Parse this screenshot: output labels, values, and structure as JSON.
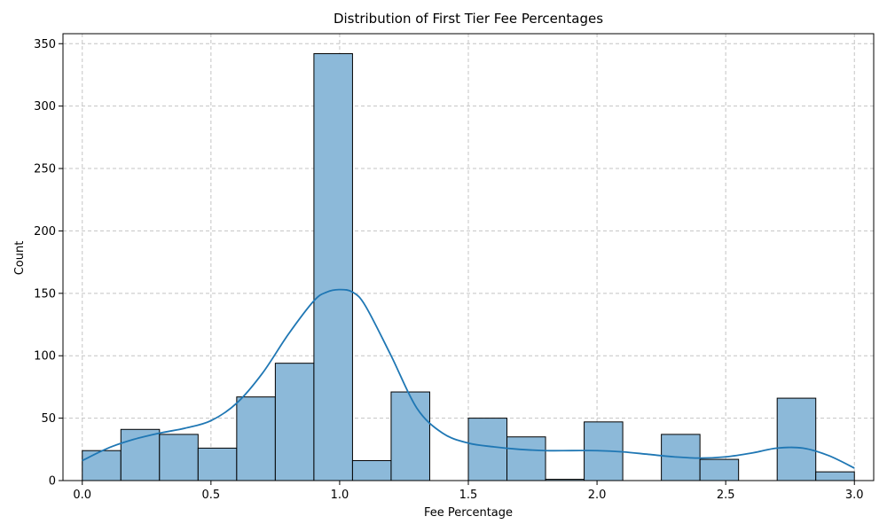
{
  "chart_data": {
    "type": "bar",
    "title": "Distribution of First Tier Fee Percentages",
    "xlabel": "Fee Percentage",
    "ylabel": "Count",
    "xlim": [
      -0.075,
      3.075
    ],
    "ylim": [
      0,
      358
    ],
    "xticks": [
      0.0,
      0.5,
      1.0,
      1.5,
      2.0,
      2.5,
      3.0
    ],
    "xtick_labels": [
      "0.0",
      "0.5",
      "1.0",
      "1.5",
      "2.0",
      "2.5",
      "3.0"
    ],
    "yticks": [
      0,
      50,
      100,
      150,
      200,
      250,
      300,
      350
    ],
    "ytick_labels": [
      "0",
      "50",
      "100",
      "150",
      "200",
      "250",
      "300",
      "350"
    ],
    "grid": true,
    "bin_edges": [
      0.0,
      0.15,
      0.3,
      0.45,
      0.6,
      0.75,
      0.9,
      1.05,
      1.2,
      1.35,
      1.5,
      1.65,
      1.8,
      1.95,
      2.1,
      2.25,
      2.4,
      2.55,
      2.7,
      2.85,
      3.0
    ],
    "counts": [
      24,
      41,
      37,
      26,
      67,
      94,
      342,
      16,
      71,
      0,
      50,
      35,
      1,
      47,
      0,
      37,
      17,
      0,
      66,
      7
    ],
    "kde": {
      "x": [
        0.0,
        0.1,
        0.2,
        0.3,
        0.4,
        0.5,
        0.6,
        0.7,
        0.8,
        0.9,
        0.95,
        1.0,
        1.05,
        1.1,
        1.2,
        1.3,
        1.4,
        1.5,
        1.6,
        1.7,
        1.8,
        1.9,
        2.0,
        2.1,
        2.2,
        2.3,
        2.4,
        2.5,
        2.6,
        2.7,
        2.8,
        2.9,
        3.0
      ],
      "y": [
        16,
        26,
        33,
        38,
        42,
        48,
        62,
        86,
        117,
        144,
        151,
        153,
        151,
        140,
        100,
        58,
        38,
        30,
        27,
        25,
        24,
        24,
        24,
        23,
        21,
        19,
        18,
        19,
        22,
        26,
        26,
        20,
        10
      ]
    },
    "colors": {
      "bar_fill": "#8cb9d9",
      "bar_edge": "#000000",
      "kde_line": "#1f77b4",
      "grid": "#c4c4c4"
    }
  }
}
